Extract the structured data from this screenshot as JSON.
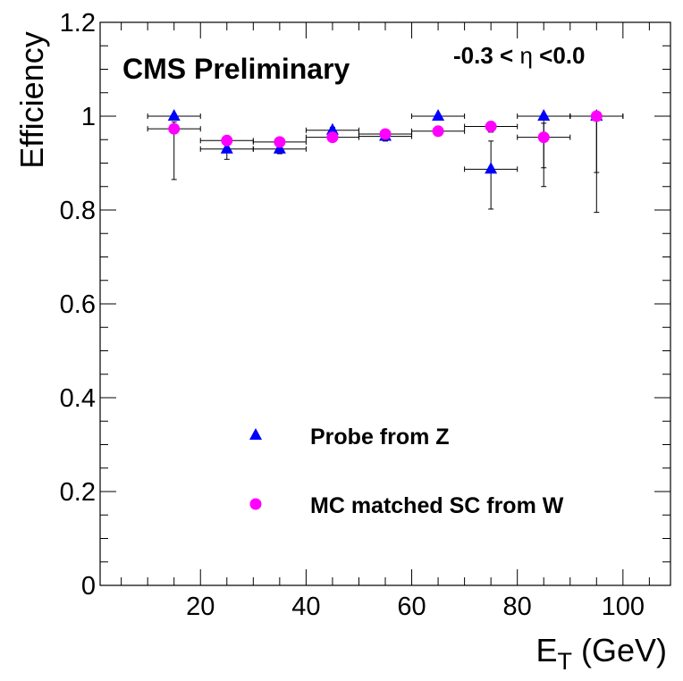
{
  "chart_data": {
    "type": "scatter",
    "xlabel": "E",
    "xlabel_sub": "T",
    "xlabel_unit": " (GeV)",
    "ylabel": "Efficiency",
    "xlim": [
      1,
      109
    ],
    "ylim": [
      0,
      1.2
    ],
    "x_ticks": [
      20,
      40,
      60,
      80,
      100
    ],
    "y_ticks": [
      0,
      0.2,
      0.4,
      0.6,
      0.8,
      1,
      1.2
    ],
    "y_tick_labels": [
      "0",
      "0.2",
      "0.4",
      "0.6",
      "0.8",
      "1",
      "1.2"
    ],
    "grid": false,
    "legend_position": "bottom-center",
    "annotations": {
      "label": "CMS Preliminary",
      "eta_left": "-0.3 < ",
      "eta_symbol": "η",
      "eta_right": " <0.0"
    },
    "series": [
      {
        "name": "Probe from Z",
        "marker": "triangle",
        "color": "#0000ff",
        "points": [
          {
            "x": 15,
            "y": 1.0,
            "xerr": 5,
            "ylo": 0.0,
            "yhi": 0.0
          },
          {
            "x": 25,
            "y": 0.93,
            "xerr": 5,
            "ylo": 0.022,
            "yhi": 0.015
          },
          {
            "x": 35,
            "y": 0.93,
            "xerr": 5,
            "ylo": 0.01,
            "yhi": 0.008
          },
          {
            "x": 45,
            "y": 0.97,
            "xerr": 5,
            "ylo": 0.008,
            "yhi": 0.006
          },
          {
            "x": 55,
            "y": 0.957,
            "xerr": 5,
            "ylo": 0.01,
            "yhi": 0.008
          },
          {
            "x": 65,
            "y": 1.0,
            "xerr": 5,
            "ylo": 0.0,
            "yhi": 0.0
          },
          {
            "x": 75,
            "y": 0.887,
            "xerr": 5,
            "ylo": 0.085,
            "yhi": 0.06
          },
          {
            "x": 85,
            "y": 1.0,
            "xerr": 5,
            "ylo": 0.11,
            "yhi": 0.0
          },
          {
            "x": 95,
            "y": 1.0,
            "xerr": 5,
            "ylo": 0.12,
            "yhi": 0.0
          }
        ]
      },
      {
        "name": "MC matched SC from W",
        "marker": "circle",
        "color": "#ff00ff",
        "points": [
          {
            "x": 15,
            "y": 0.973,
            "xerr": 5,
            "ylo": 0.108,
            "yhi": 0.015
          },
          {
            "x": 25,
            "y": 0.948,
            "xerr": 5,
            "ylo": 0.008,
            "yhi": 0.006
          },
          {
            "x": 35,
            "y": 0.945,
            "xerr": 5,
            "ylo": 0.006,
            "yhi": 0.005
          },
          {
            "x": 45,
            "y": 0.955,
            "xerr": 5,
            "ylo": 0.006,
            "yhi": 0.005
          },
          {
            "x": 55,
            "y": 0.962,
            "xerr": 5,
            "ylo": 0.005,
            "yhi": 0.004
          },
          {
            "x": 65,
            "y": 0.968,
            "xerr": 5,
            "ylo": 0.01,
            "yhi": 0.008
          },
          {
            "x": 75,
            "y": 0.978,
            "xerr": 5,
            "ylo": 0.012,
            "yhi": 0.01
          },
          {
            "x": 85,
            "y": 0.955,
            "xerr": 5,
            "ylo": 0.105,
            "yhi": 0.03
          },
          {
            "x": 95,
            "y": 1.0,
            "xerr": 5,
            "ylo": 0.205,
            "yhi": 0.0
          }
        ]
      }
    ]
  }
}
